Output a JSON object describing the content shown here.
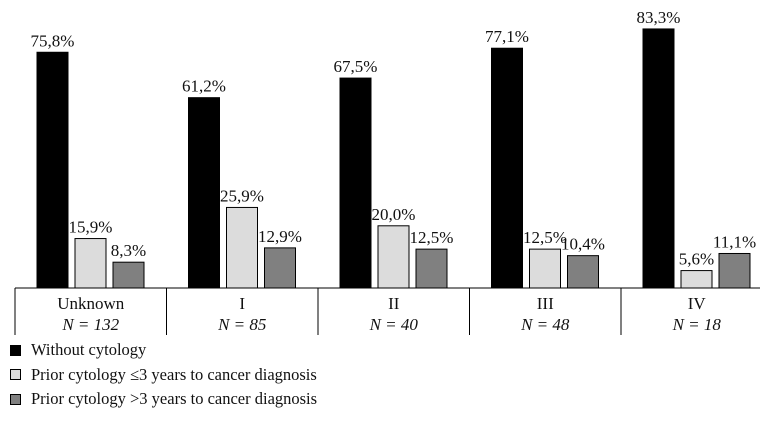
{
  "chart_data": {
    "type": "bar",
    "categories": [
      "Unknown",
      "I",
      "II",
      "III",
      "IV"
    ],
    "category_n": [
      "N = 132",
      "N = 85",
      "N = 40",
      "N = 48",
      "N = 18"
    ],
    "series": [
      {
        "name": "Without cytology",
        "color": "#000000",
        "values": [
          75.8,
          61.2,
          67.5,
          77.1,
          83.3
        ],
        "labels": [
          "75,8%",
          "61,2%",
          "67,5%",
          "77,1%",
          "83,3%"
        ]
      },
      {
        "name": "Prior cytology ≤3 years to cancer diagnosis",
        "color": "#dcdcdc",
        "values": [
          15.9,
          25.9,
          20.0,
          12.5,
          5.6
        ],
        "labels": [
          "15,9%",
          "25,9%",
          "20,0%",
          "12,5%",
          "5,6%"
        ]
      },
      {
        "name": "Prior cytology >3 years to cancer diagnosis",
        "color": "#808080",
        "values": [
          8.3,
          12.9,
          12.5,
          10.4,
          11.1
        ],
        "labels": [
          "8,3%",
          "12,9%",
          "12,5%",
          "10,4%",
          "11,1%"
        ]
      }
    ],
    "ylim": [
      0,
      100
    ],
    "grid": false,
    "legend_position": "bottom-left"
  }
}
